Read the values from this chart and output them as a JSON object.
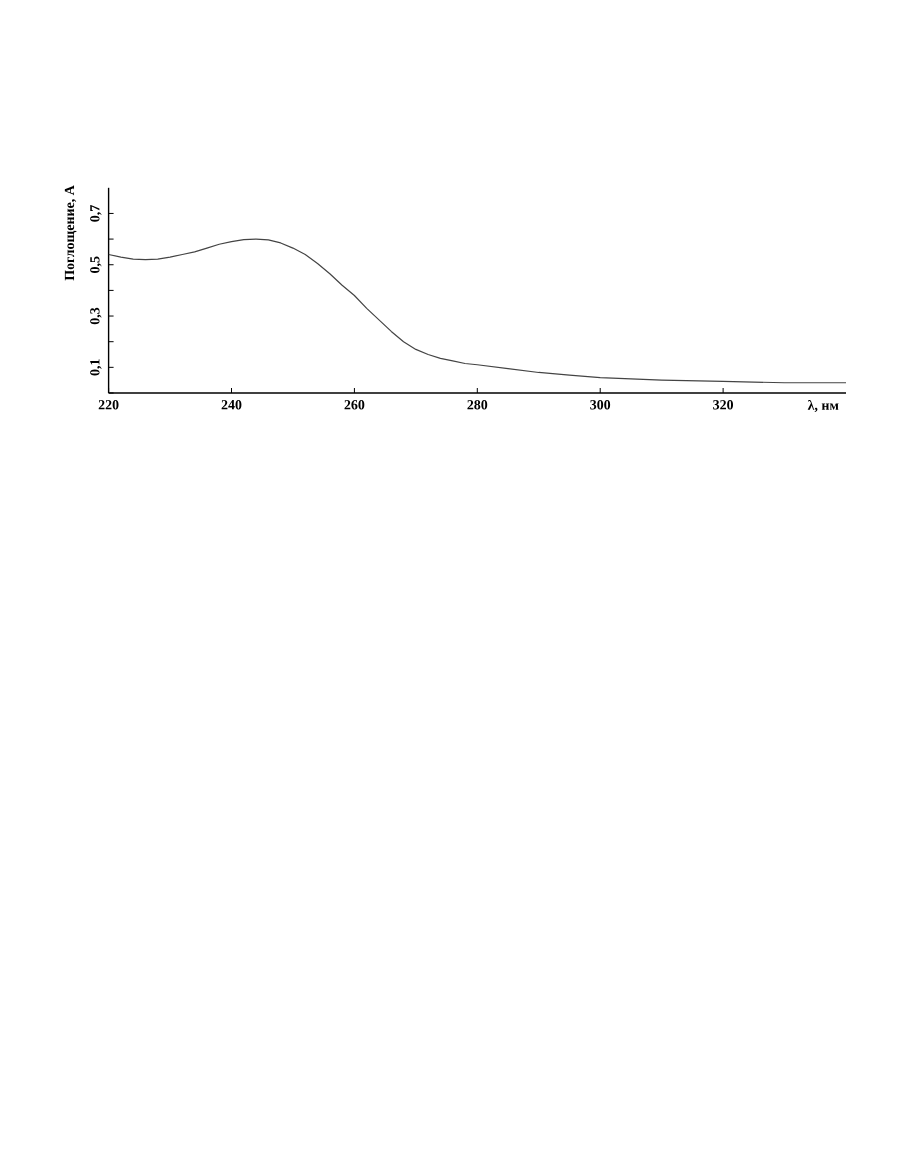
{
  "chart_data": {
    "type": "line",
    "xlabel": "λ, нм",
    "ylabel": "Поглощение, A",
    "x": [
      220,
      222,
      224,
      226,
      228,
      230,
      232,
      234,
      236,
      238,
      240,
      242,
      244,
      246,
      248,
      250,
      252,
      254,
      256,
      258,
      260,
      262,
      264,
      266,
      268,
      270,
      272,
      274,
      276,
      278,
      280,
      285,
      290,
      295,
      300,
      310,
      320,
      330,
      340
    ],
    "series": [
      {
        "color": "#444444",
        "values": [
          0.54,
          0.53,
          0.522,
          0.52,
          0.522,
          0.53,
          0.54,
          0.55,
          0.565,
          0.58,
          0.59,
          0.598,
          0.6,
          0.597,
          0.585,
          0.565,
          0.54,
          0.505,
          0.465,
          0.42,
          0.38,
          0.33,
          0.285,
          0.24,
          0.2,
          0.17,
          0.15,
          0.135,
          0.125,
          0.115,
          0.11,
          0.095,
          0.08,
          0.07,
          0.06,
          0.05,
          0.045,
          0.04,
          0.04
        ]
      }
    ],
    "xlim": [
      220,
      340
    ],
    "ylim": [
      0,
      0.8
    ],
    "xticks": [
      220,
      240,
      260,
      280,
      300,
      320
    ],
    "yticks": [
      {
        "value": 0,
        "label": null
      },
      {
        "value": 0.1,
        "label": "0,1"
      },
      {
        "value": 0.2,
        "label": null
      },
      {
        "value": 0.3,
        "label": "0,3"
      },
      {
        "value": 0.4,
        "label": null
      },
      {
        "value": 0.5,
        "label": "0,5"
      },
      {
        "value": 0.6,
        "label": null
      },
      {
        "value": 0.7,
        "label": "0,7"
      }
    ],
    "grid": false
  }
}
